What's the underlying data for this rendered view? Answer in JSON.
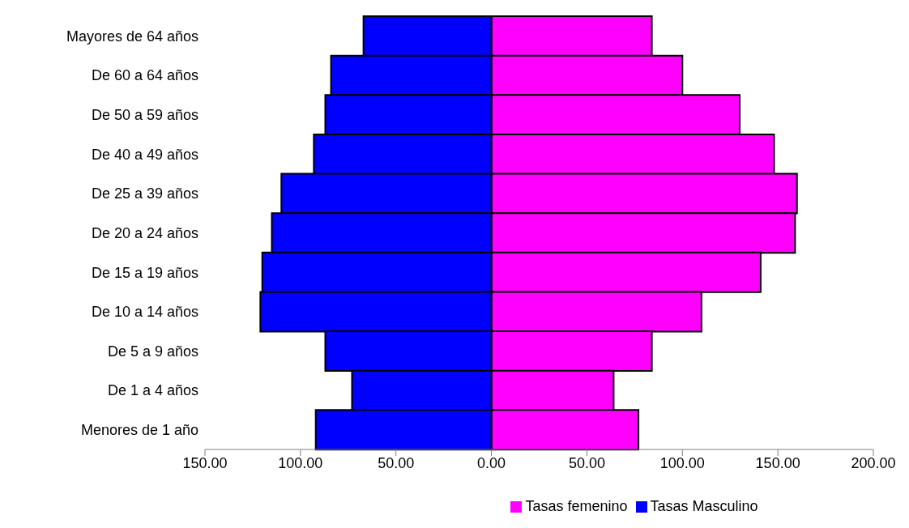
{
  "chart_data": {
    "type": "bar",
    "orientation": "horizontal",
    "stacked": true,
    "categories": [
      "Mayores de 64 años",
      "De 60 a 64 años",
      "De 50 a 59 años",
      "De 40 a 49 años",
      "De 25 a 39 años",
      "De 20 a 24 años",
      "De 15 a 19 años",
      "De 10 a 14 años",
      "De 5 a 9 años",
      "De 1 a 4 años",
      "Menores de 1 año"
    ],
    "series": [
      {
        "name": "Tasas femenino",
        "color": "#ff00ff",
        "values": [
          84,
          100,
          130,
          148,
          160,
          159,
          141,
          110,
          84,
          64,
          77
        ]
      },
      {
        "name": "Tasas Masculino",
        "color": "#0000ff",
        "values": [
          -67,
          -84,
          -87,
          -93,
          -110,
          -115,
          -120,
          -121,
          -87,
          -73,
          -92
        ]
      }
    ],
    "xlim": [
      -150,
      200
    ],
    "xticks": [
      {
        "value": -150,
        "label": "150.00"
      },
      {
        "value": -100,
        "label": "100.00"
      },
      {
        "value": -50,
        "label": "50.00"
      },
      {
        "value": 0,
        "label": "0.00"
      },
      {
        "value": 50,
        "label": "50.00"
      },
      {
        "value": 100,
        "label": "100.00"
      },
      {
        "value": 150,
        "label": "150.00"
      },
      {
        "value": 200,
        "label": "200.00"
      }
    ],
    "grid": false,
    "legend": "bottom"
  }
}
